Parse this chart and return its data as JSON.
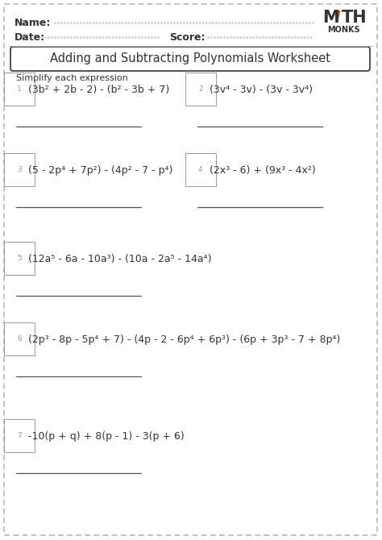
{
  "title": "Adding and Subtracting Polynomials Worksheet",
  "instruction": "Simplify each expression",
  "name_label": "Name:",
  "date_label": "Date:",
  "score_label": "Score:",
  "logo_monks": "MONKS",
  "logo_triangle_color": "#e8540a",
  "border_color": "#aaaaaa",
  "problems": [
    {
      "num": "1",
      "expr": "(3b² + 2b - 2) - (b² - 3b + 7)",
      "col": 0
    },
    {
      "num": "2",
      "expr": "(3v⁴ - 3v) - (3v - 3v⁴)",
      "col": 1
    },
    {
      "num": "3",
      "expr": "(5 - 2p⁴ + 7p²) - (4p² - 7 - p⁴)",
      "col": 0
    },
    {
      "num": "4",
      "expr": "(2x³ - 6) + (9x³ - 4x²)",
      "col": 1
    },
    {
      "num": "5",
      "expr": "(12a⁵ - 6a - 10a³) - (10a - 2a⁵ - 14a⁴)",
      "col": 0
    },
    {
      "num": "6",
      "expr": "(2p³ - 8p - 5p⁴ + 7) - (4p - 2 - 6p⁴ + 6p³) - (6p + 3p³ - 7 + 8p⁴)",
      "col": 0
    },
    {
      "num": "7",
      "expr": "-10(p + q) + 8(p - 1) - 3(p + 6)",
      "col": 0
    }
  ],
  "bg_color": "#ffffff",
  "text_color": "#333333",
  "line_color": "#555555",
  "num_color": "#999999",
  "font_size_title": 10.5,
  "font_size_body": 9,
  "font_size_header": 9
}
